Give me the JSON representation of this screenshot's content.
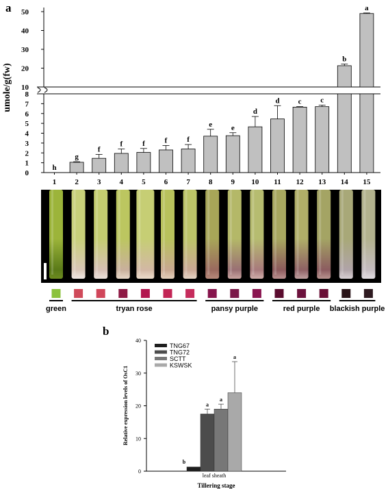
{
  "figure": {
    "panel_a_label": "a",
    "panel_b_label": "b"
  },
  "chart_data": [
    {
      "type": "bar",
      "panel": "a",
      "ylabel": "umole/g(fw)",
      "categories": [
        "1",
        "2",
        "3",
        "4",
        "5",
        "6",
        "7",
        "8",
        "9",
        "10",
        "11",
        "12",
        "13",
        "14",
        "15"
      ],
      "values": [
        0,
        1.05,
        1.45,
        1.95,
        2.05,
        2.3,
        2.4,
        3.7,
        3.75,
        4.65,
        5.45,
        6.65,
        6.7,
        21.3,
        49.0
      ],
      "errors": [
        0,
        0.05,
        0.4,
        0.45,
        0.4,
        0.45,
        0.45,
        0.7,
        0.3,
        1.05,
        1.35,
        0.05,
        0.15,
        0.9,
        0.3
      ],
      "significance": [
        "h",
        "g",
        "f",
        "f",
        "f",
        "f",
        "f",
        "e",
        "e",
        "d",
        "d",
        "c",
        "c",
        "b",
        "a"
      ],
      "axis_break": true,
      "ylim_lower": [
        0,
        8
      ],
      "ylim_upper": [
        10,
        50
      ],
      "yticks_lower": [
        "0",
        "1",
        "2",
        "3",
        "4",
        "5",
        "6",
        "7",
        "8"
      ],
      "yticks_upper": [
        "10",
        "20",
        "30",
        "40",
        "50"
      ],
      "bar_color": "#c0c0c0"
    },
    {
      "type": "bar",
      "panel": "b",
      "ylabel": "Relative expression levels of OsC1",
      "xlabel": "Tillering stage",
      "categories": [
        "leaf sheath"
      ],
      "series": [
        {
          "name": "TNG67",
          "value": 1.3,
          "error": 0,
          "letter": "b",
          "color": "#1e1e1e"
        },
        {
          "name": "TNG72",
          "value": 17.5,
          "error": 1.5,
          "letter": "a",
          "color": "#4c4c4c"
        },
        {
          "name": "SCTT",
          "value": 19.0,
          "error": 1.5,
          "letter": "a",
          "color": "#777777"
        },
        {
          "name": "KSWSK",
          "value": 24.0,
          "error": 9.5,
          "letter": "a",
          "color": "#a9a9a9"
        }
      ],
      "ylim": [
        0,
        40
      ],
      "yticks": [
        "0",
        "10",
        "20",
        "30",
        "40"
      ]
    }
  ],
  "color_chips": {
    "swatches": [
      "#8cc23c",
      "#cf4a5a",
      "#d0465a",
      "#8e1944",
      "#b2154e",
      "#c22555",
      "#c52c5c",
      "#86144c",
      "#7a1848",
      "#8a1550",
      "#5a0b2e",
      "#6c123d",
      "#6a0f36",
      "#2a1418",
      "#2e1a20"
    ],
    "groups": [
      {
        "label": "green",
        "from": 0,
        "to": 0
      },
      {
        "label": "tryan rose",
        "from": 1,
        "to": 6
      },
      {
        "label": "pansy purple",
        "from": 7,
        "to": 9
      },
      {
        "label": "red purple",
        "from": 10,
        "to": 12
      },
      {
        "label": "blackish purple",
        "from": 13,
        "to": 14
      }
    ]
  },
  "photo": {
    "stem_tones": [
      {
        "top": "#9cb43a",
        "bottom": "#5a7a18",
        "tip": "#6c8a20"
      },
      {
        "top": "#c8d07a",
        "bottom": "#d8c6b6",
        "tip": "#f0e8e4"
      },
      {
        "top": "#c4cc70",
        "bottom": "#d6c0b4",
        "tip": "#ece2dc"
      },
      {
        "top": "#bcc660",
        "bottom": "#c9b09c",
        "tip": "#e8d8c8"
      },
      {
        "top": "#c6ce74",
        "bottom": "#d2b8a4",
        "tip": "#ecdccc"
      },
      {
        "top": "#b8c25c",
        "bottom": "#c8a890",
        "tip": "#e4d0bc"
      },
      {
        "top": "#bcc468",
        "bottom": "#caa894",
        "tip": "#e6d4c6"
      },
      {
        "top": "#a8a658",
        "bottom": "#9a6a5e",
        "tip": "#b88a7c"
      },
      {
        "top": "#b4b868",
        "bottom": "#9a7074",
        "tip": "#c8a4a0"
      },
      {
        "top": "#b6bc70",
        "bottom": "#a87a7c",
        "tip": "#d0aeaa"
      },
      {
        "top": "#a8a860",
        "bottom": "#8c5a5c",
        "tip": "#ba9090"
      },
      {
        "top": "#b0ae68",
        "bottom": "#8e6064",
        "tip": "#c0a0a0"
      },
      {
        "top": "#a4a464",
        "bottom": "#8c5c60",
        "tip": "#b89490"
      },
      {
        "top": "#a8a878",
        "bottom": "#b0a4a8",
        "tip": "#d8d0d4"
      },
      {
        "top": "#b2b28e",
        "bottom": "#c4bcc0",
        "tip": "#e2dee2"
      }
    ]
  }
}
